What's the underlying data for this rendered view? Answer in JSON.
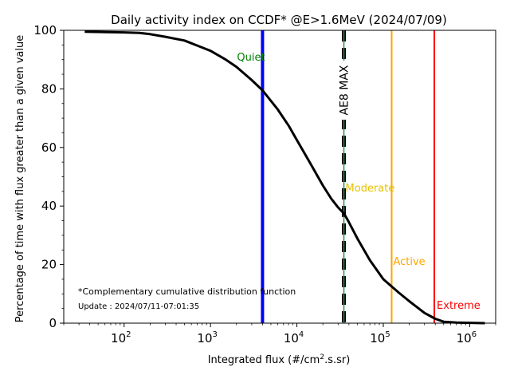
{
  "chart_data": {
    "type": "line",
    "title": "Daily activity index on CCDF* @E>1.6MeV (2024/07/09)",
    "xlabel": "Integrated flux (#/cm",
    "xlabel_sup": "2",
    "xlabel_suffix": ".s.sr)",
    "ylabel": "Percentage of time with flux greater than a given value",
    "x_scale": "log",
    "xlim": [
      20,
      2000000
    ],
    "ylim": [
      0,
      100
    ],
    "x_ticks": [
      {
        "value": 100,
        "base": "10",
        "exp": "2"
      },
      {
        "value": 1000,
        "base": "10",
        "exp": "3"
      },
      {
        "value": 10000,
        "base": "10",
        "exp": "4"
      },
      {
        "value": 100000,
        "base": "10",
        "exp": "5"
      },
      {
        "value": 1000000,
        "base": "10",
        "exp": "6"
      }
    ],
    "y_ticks": [
      "0",
      "20",
      "40",
      "60",
      "80",
      "100"
    ],
    "grid": false,
    "series": [
      {
        "color": "#000000",
        "x": [
          35,
          100,
          150,
          200,
          300,
          500,
          1000,
          1500,
          2000,
          3000,
          4000,
          6000,
          8000,
          10000,
          15000,
          20000,
          25000,
          30000,
          35000,
          40000,
          50000,
          70000,
          100000,
          150000,
          200000,
          300000,
          400000,
          500000,
          700000,
          1000000,
          1500000
        ],
        "y": [
          99.5,
          99.3,
          99.1,
          98.7,
          97.8,
          96.5,
          93,
          90,
          87.5,
          83,
          79.5,
          73,
          67.5,
          62.5,
          53.5,
          47,
          42.5,
          39.5,
          37.5,
          34.5,
          29,
          21.5,
          15,
          10.5,
          7.5,
          3.5,
          1.5,
          0.5,
          0.2,
          0.1,
          0
        ]
      }
    ],
    "thresholds": [
      {
        "label": "Quiet",
        "value": 4000,
        "color": "#0000ff",
        "label_color": "#008000"
      },
      {
        "label": "AE8 MAX",
        "value": 35000,
        "color": "#000000",
        "style": "dashed",
        "label_color": "#000000"
      },
      {
        "label": "Moderate",
        "value": 35000,
        "color": "#2e8b57",
        "label_color": "#e6c000"
      },
      {
        "label": "Active",
        "value": 125000,
        "color": "#ffa500",
        "label_color": "#ffa500"
      },
      {
        "label": "Extreme",
        "value": 390000,
        "color": "#ff0000",
        "label_color": "#ff0000"
      }
    ],
    "annotations": {
      "footnote": "*Complementary cumulative distribution function",
      "update": "Update : 2024/07/11-07:01:35"
    }
  }
}
